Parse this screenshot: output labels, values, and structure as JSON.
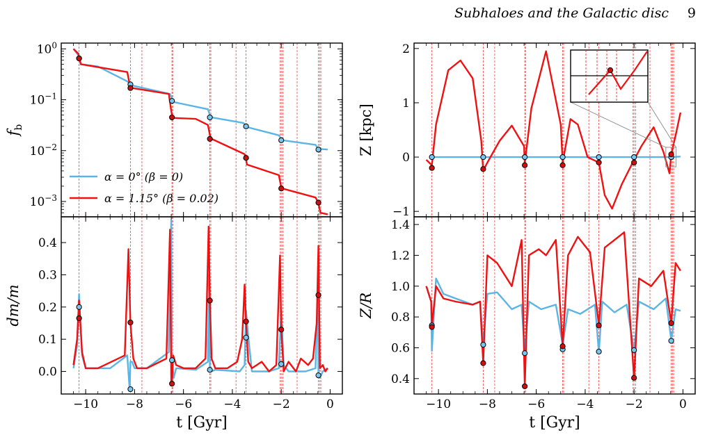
{
  "header": {
    "running_title": "Subhaloes and the Galactic disc",
    "page_number": "9"
  },
  "colors": {
    "blue": "#5AB4E5",
    "red": "#EE1111"
  },
  "event_times": [
    -10.27,
    -8.17,
    -7.7,
    -6.47,
    -6.44,
    -4.92,
    -4.88,
    -3.85,
    -3.44,
    -2.04,
    -2.0,
    -1.93,
    -1.35,
    -0.48,
    -0.43,
    -0.38
  ],
  "chart_data": [
    {
      "type": "line",
      "panel": "fb",
      "ylabel": "f_b",
      "yscale": "log",
      "xlim": [
        -11,
        0.5
      ],
      "ylim": [
        0.0005,
        1.3
      ],
      "yticks": [
        0.001,
        0.01,
        0.1,
        1
      ],
      "ytick_labels": [
        "10^-3",
        "10^-2",
        "10^-1",
        "10^0"
      ],
      "legend": "lower-left",
      "series": [
        {
          "name": "α = 0° (β = 0)",
          "color": "blue",
          "x": [
            -10.5,
            -10.3,
            -10.2,
            -9.5,
            -8.3,
            -8.15,
            -8.1,
            -6.55,
            -6.45,
            -6.4,
            -5.0,
            -4.9,
            -4.85,
            -3.55,
            -3.45,
            -3.4,
            -2.1,
            -2.0,
            -1.95,
            -0.6,
            -0.5,
            -0.45,
            -0.1
          ],
          "y": [
            1.0,
            0.75,
            0.5,
            0.45,
            0.23,
            0.2,
            0.19,
            0.13,
            0.1,
            0.09,
            0.065,
            0.047,
            0.045,
            0.035,
            0.031,
            0.029,
            0.02,
            0.017,
            0.016,
            0.013,
            0.011,
            0.0108,
            0.0105
          ],
          "markers_x": [
            -10.27,
            -8.17,
            -6.47,
            -4.92,
            -3.44,
            -2.0,
            -0.48
          ],
          "markers_y": [
            0.65,
            0.2,
            0.095,
            0.045,
            0.03,
            0.016,
            0.0105
          ]
        },
        {
          "name": "α = 1.15° (β = 0.02)",
          "color": "red",
          "x": [
            -10.5,
            -10.3,
            -10.2,
            -8.3,
            -8.2,
            -8.1,
            -6.6,
            -6.5,
            -6.45,
            -6.4,
            -5.5,
            -5.0,
            -4.9,
            -4.85,
            -3.5,
            -3.45,
            -3.4,
            -2.1,
            -2.0,
            -1.95,
            -0.6,
            -0.48,
            -0.4,
            -0.1
          ],
          "y": [
            1.0,
            0.8,
            0.5,
            0.35,
            0.2,
            0.17,
            0.13,
            0.06,
            0.045,
            0.044,
            0.042,
            0.032,
            0.018,
            0.017,
            0.0085,
            0.007,
            0.0053,
            0.0033,
            0.0019,
            0.0018,
            0.0012,
            0.00095,
            0.0006,
            0.00056
          ],
          "markers_x": [
            -10.27,
            -8.17,
            -6.47,
            -4.92,
            -3.44,
            -2.0,
            -0.48
          ],
          "markers_y": [
            0.65,
            0.17,
            0.045,
            0.017,
            0.0072,
            0.0018,
            0.00095
          ]
        }
      ]
    },
    {
      "type": "line",
      "panel": "dmm",
      "ylabel": "dm/m",
      "xlabel": "t [Gyr]",
      "xlim": [
        -11,
        0.5
      ],
      "ylim": [
        -0.07,
        0.48
      ],
      "xticks": [
        -10,
        -8,
        -6,
        -4,
        -2,
        0
      ],
      "xtick_labels": [
        "−10",
        "−8",
        "−6",
        "−4",
        "−2",
        "0"
      ],
      "yticks": [
        0,
        0.1,
        0.2,
        0.3,
        0.4
      ],
      "ytick_labels": [
        "0.0",
        "0.1",
        "0.2",
        "0.3",
        "0.4"
      ],
      "series": [
        {
          "name": "",
          "color": "blue",
          "x": [
            -10.5,
            -10.35,
            -10.27,
            -10.15,
            -10.0,
            -9.0,
            -8.3,
            -8.2,
            -8.17,
            -8.1,
            -8.0,
            -7.5,
            -6.6,
            -6.5,
            -6.47,
            -6.4,
            -6.3,
            -5.5,
            -5.0,
            -4.95,
            -4.92,
            -4.85,
            -4.7,
            -3.7,
            -3.5,
            -3.44,
            -3.35,
            -3.2,
            -2.5,
            -2.1,
            -2.0,
            -1.9,
            -1.7,
            -1.0,
            -0.6,
            -0.5,
            -0.48,
            -0.42,
            -0.3,
            -0.1
          ],
          "y": [
            0.01,
            0.08,
            0.24,
            0.05,
            0.01,
            0.01,
            0.05,
            -0.06,
            0.03,
            0.03,
            0.01,
            0.01,
            0.06,
            0.47,
            0.03,
            -0.02,
            0.01,
            0.005,
            0.03,
            0.3,
            0.005,
            0.0,
            0.005,
            0.0,
            0.02,
            0.19,
            0.11,
            0.0,
            0.0,
            0.01,
            0.19,
            0.02,
            0.0,
            0.0,
            0.01,
            0.26,
            -0.015,
            -0.02,
            0.0,
            0.01
          ],
          "markers_x": [
            -10.27,
            -8.17,
            -6.47,
            -4.92,
            -3.44,
            -2.0,
            -0.48
          ],
          "markers_y": [
            0.2,
            -0.055,
            0.035,
            0.005,
            0.105,
            0.023,
            -0.012
          ]
        },
        {
          "name": "",
          "color": "red",
          "x": [
            -10.5,
            -10.35,
            -10.27,
            -10.15,
            -10.0,
            -9.5,
            -8.4,
            -8.25,
            -8.17,
            -8.05,
            -7.9,
            -7.5,
            -6.7,
            -6.55,
            -6.5,
            -6.47,
            -6.42,
            -6.3,
            -6.0,
            -5.5,
            -5.1,
            -4.97,
            -4.92,
            -4.85,
            -4.7,
            -4.2,
            -3.8,
            -3.6,
            -3.5,
            -3.44,
            -3.35,
            -3.2,
            -2.8,
            -2.5,
            -2.2,
            -2.05,
            -2.0,
            -1.9,
            -1.7,
            -1.4,
            -1.2,
            -0.9,
            -0.7,
            -0.55,
            -0.48,
            -0.42,
            -0.3,
            -0.2,
            -0.1
          ],
          "y": [
            0.02,
            0.1,
            0.22,
            0.06,
            0.01,
            0.01,
            0.05,
            0.38,
            0.15,
            0.04,
            0.01,
            0.01,
            0.04,
            0.44,
            -0.03,
            -0.035,
            0.05,
            0.02,
            0.01,
            0.01,
            0.04,
            0.45,
            0.22,
            0.04,
            0.01,
            0.01,
            0.03,
            0.1,
            0.27,
            0.15,
            0.03,
            0.01,
            0.03,
            0.0,
            0.02,
            0.36,
            0.13,
            0.0,
            0.03,
            0.0,
            0.04,
            0.02,
            0.04,
            0.15,
            0.39,
            0.01,
            0.02,
            0.0,
            0.01
          ],
          "markers_x": [
            -10.27,
            -8.17,
            -6.47,
            -4.92,
            -3.44,
            -2.0,
            -0.48
          ],
          "markers_y": [
            0.165,
            0.152,
            -0.038,
            0.22,
            0.155,
            0.13,
            0.237
          ]
        }
      ]
    },
    {
      "type": "line",
      "panel": "Z",
      "ylabel": "Z [kpc]",
      "xlim": [
        -11,
        0.5
      ],
      "ylim": [
        -1.1,
        2.1
      ],
      "yticks": [
        -1,
        0,
        1,
        2
      ],
      "ytick_labels": [
        "−1",
        "0",
        "1",
        "2"
      ],
      "inset": "top-right",
      "series": [
        {
          "name": "",
          "color": "blue",
          "x": [
            -10.27,
            -8.17,
            -6.47,
            -4.92,
            -3.44,
            -2.0,
            -0.48,
            -0.1
          ],
          "y": [
            0.0,
            0.0,
            0.0,
            0.0,
            0.0,
            0.0,
            0.0,
            0.01
          ],
          "markers_x": [
            -10.27,
            -8.17,
            -6.47,
            -4.92,
            -3.44,
            -2.0,
            -0.48
          ],
          "markers_y": [
            0.0,
            0.0,
            0.0,
            0.0,
            0.0,
            0.0,
            0.0
          ]
        },
        {
          "name": "",
          "color": "red",
          "x": [
            -10.5,
            -10.27,
            -10.1,
            -9.6,
            -9.1,
            -8.6,
            -8.25,
            -8.17,
            -8.0,
            -7.5,
            -7.0,
            -6.5,
            -6.47,
            -6.2,
            -5.6,
            -5.0,
            -4.92,
            -4.6,
            -4.3,
            -3.9,
            -3.44,
            -3.2,
            -2.9,
            -2.5,
            -2.0,
            -1.7,
            -1.2,
            -0.8,
            -0.55,
            -0.48,
            -0.3,
            -0.1
          ],
          "y": [
            -0.05,
            -0.15,
            0.6,
            1.6,
            1.78,
            1.45,
            0.3,
            -0.25,
            -0.1,
            0.3,
            0.58,
            0.2,
            -0.12,
            0.9,
            1.95,
            0.6,
            -0.1,
            0.7,
            0.6,
            0.0,
            -0.1,
            -0.7,
            -0.95,
            -0.5,
            -0.05,
            0.2,
            0.55,
            0.1,
            -0.3,
            0.05,
            0.4,
            0.82
          ],
          "markers_x": [
            -10.27,
            -8.17,
            -6.47,
            -4.92,
            -3.44,
            -2.0,
            -0.48
          ],
          "markers_y": [
            -0.2,
            -0.22,
            -0.15,
            -0.15,
            -0.1,
            -0.1,
            0.05
          ]
        }
      ]
    },
    {
      "type": "line",
      "panel": "ZR",
      "ylabel": "Z/R",
      "xlabel": "t [Gyr]",
      "xlim": [
        -11,
        0.5
      ],
      "ylim": [
        0.3,
        1.45
      ],
      "xticks": [
        -10,
        -8,
        -6,
        -4,
        -2,
        0
      ],
      "xtick_labels": [
        "−10",
        "−8",
        "−6",
        "−4",
        "−2",
        "0"
      ],
      "yticks": [
        0.4,
        0.6,
        0.8,
        1.0,
        1.2,
        1.4
      ],
      "ytick_labels": [
        "0.4",
        "0.6",
        "0.8",
        "1.0",
        "1.2",
        "1.4"
      ],
      "series": [
        {
          "name": "",
          "color": "blue",
          "x": [
            -10.5,
            -10.3,
            -10.27,
            -10.1,
            -9.8,
            -9.3,
            -8.6,
            -8.3,
            -8.17,
            -8.0,
            -7.6,
            -7.0,
            -6.6,
            -6.47,
            -6.3,
            -5.8,
            -5.2,
            -4.92,
            -4.7,
            -4.2,
            -3.6,
            -3.44,
            -3.3,
            -2.8,
            -2.3,
            -2.0,
            -1.8,
            -1.2,
            -0.7,
            -0.48,
            -0.3,
            -0.1
          ],
          "y": [
            1.0,
            0.9,
            0.58,
            1.05,
            0.95,
            0.92,
            0.88,
            0.9,
            0.62,
            0.95,
            0.96,
            0.85,
            0.88,
            0.57,
            0.9,
            0.85,
            0.88,
            0.62,
            0.85,
            0.82,
            0.88,
            0.57,
            0.9,
            0.83,
            0.88,
            0.58,
            0.9,
            0.85,
            0.92,
            0.65,
            0.85,
            0.84
          ],
          "markers_x": [
            -10.27,
            -8.17,
            -6.47,
            -4.92,
            -3.44,
            -2.0,
            -0.48
          ],
          "markers_y": [
            0.745,
            0.62,
            0.565,
            0.59,
            0.575,
            0.585,
            0.645
          ]
        },
        {
          "name": "",
          "color": "red",
          "x": [
            -10.5,
            -10.3,
            -10.27,
            -10.1,
            -9.8,
            -9.3,
            -8.6,
            -8.3,
            -8.17,
            -8.0,
            -7.6,
            -7.0,
            -6.6,
            -6.47,
            -6.3,
            -5.9,
            -5.6,
            -5.2,
            -4.92,
            -4.7,
            -4.3,
            -3.8,
            -3.44,
            -3.2,
            -2.8,
            -2.4,
            -2.0,
            -1.8,
            -1.3,
            -0.8,
            -0.48,
            -0.3,
            -0.1
          ],
          "y": [
            1.0,
            0.9,
            0.74,
            1.0,
            0.92,
            0.9,
            0.88,
            0.9,
            0.5,
            1.2,
            1.15,
            1.0,
            1.3,
            0.35,
            1.2,
            1.24,
            1.2,
            1.3,
            0.61,
            1.2,
            1.32,
            1.22,
            0.75,
            1.25,
            1.3,
            1.35,
            0.4,
            1.05,
            1.0,
            1.1,
            0.76,
            1.15,
            1.1
          ],
          "markers_x": [
            -10.27,
            -8.17,
            -6.47,
            -4.92,
            -3.44,
            -2.0,
            -0.48
          ],
          "markers_y": [
            0.735,
            0.5,
            0.35,
            0.61,
            0.745,
            0.405,
            0.76
          ]
        }
      ]
    }
  ]
}
